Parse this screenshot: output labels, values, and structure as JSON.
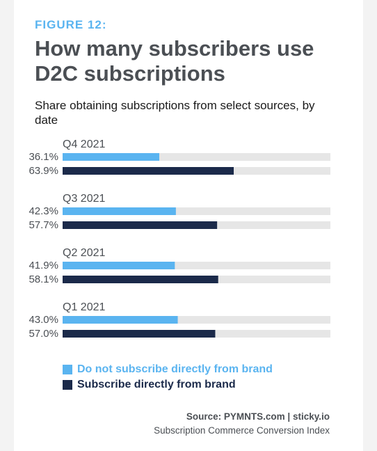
{
  "figure_label": "FIGURE 12:",
  "source": {
    "main": "Source: PYMNTS.com  |  sticky.io",
    "sub": "Subscription Commerce Conversion Index"
  },
  "colors": {
    "not_direct": "#5ab4f0",
    "direct": "#1b2a4a",
    "track": "#e6e6e6",
    "text": "#4b4f54"
  },
  "chart_data": {
    "type": "bar",
    "orientation": "horizontal",
    "title": "How many subscribers use D2C subscriptions",
    "subtitle": "Share obtaining subscriptions from select sources, by date",
    "categories": [
      "Q4 2021",
      "Q3 2021",
      "Q2 2021",
      "Q1 2021"
    ],
    "series": [
      {
        "name": "Do not subscribe directly from brand",
        "values": [
          36.1,
          42.3,
          41.9,
          43.0
        ],
        "labels": [
          "36.1%",
          "42.3%",
          "41.9%",
          "43.0%"
        ]
      },
      {
        "name": "Subscribe directly from brand",
        "values": [
          63.9,
          57.7,
          58.1,
          57.0
        ],
        "labels": [
          "63.9%",
          "57.7%",
          "58.1%",
          "57.0%"
        ]
      }
    ],
    "xlim": [
      0,
      100
    ],
    "grid": false,
    "legend": "bottom-left"
  }
}
